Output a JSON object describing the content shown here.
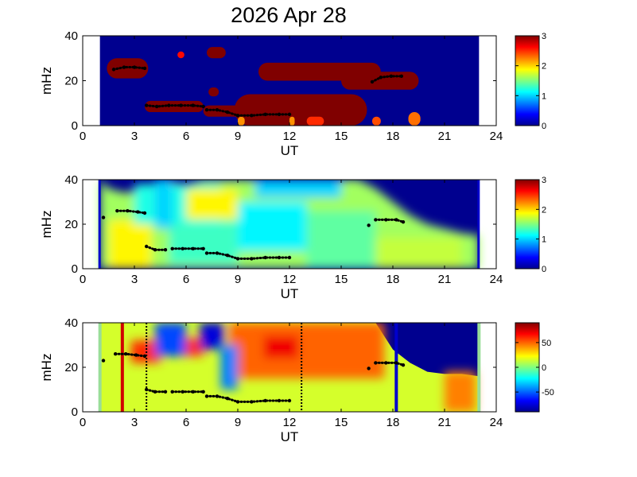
{
  "title": "2026 Apr 28",
  "colors": {
    "background": "#00008f",
    "axis": "#000000",
    "figure": "#ffffff"
  },
  "chart_data": [
    {
      "type": "heatmap",
      "xlabel": "UT",
      "ylabel": "mHz",
      "xlim": [
        0,
        24
      ],
      "ylim": [
        0,
        40
      ],
      "xticks": [
        "0",
        "3",
        "6",
        "9",
        "12",
        "15",
        "18",
        "21",
        "24"
      ],
      "yticks": [
        "0",
        "20",
        "40"
      ],
      "data_range_x": [
        1,
        23
      ],
      "colorbar": {
        "min": 0,
        "max": 3,
        "ticks": [
          "0",
          "1",
          "2",
          "3"
        ]
      },
      "regions": [
        {
          "t0": 1.4,
          "t1": 3.8,
          "f0": 21,
          "f1": 30,
          "level": 3
        },
        {
          "t0": 3.6,
          "t1": 7.0,
          "f0": 6,
          "f1": 11,
          "level": 3
        },
        {
          "t0": 5.5,
          "t1": 5.9,
          "f0": 30,
          "f1": 33,
          "level": 2.6
        },
        {
          "t0": 7.2,
          "t1": 8.3,
          "f0": 30,
          "f1": 35,
          "level": 3
        },
        {
          "t0": 7.3,
          "t1": 7.9,
          "f0": 13,
          "f1": 17,
          "level": 3
        },
        {
          "t0": 7.0,
          "t1": 9.2,
          "f0": 4,
          "f1": 9,
          "level": 3
        },
        {
          "t0": 8.8,
          "t1": 16.5,
          "f0": 0,
          "f1": 14,
          "level": 3
        },
        {
          "t0": 10.2,
          "t1": 17.3,
          "f0": 20,
          "f1": 28,
          "level": 3
        },
        {
          "t0": 15.0,
          "t1": 19.5,
          "f0": 16,
          "f1": 24,
          "level": 3
        },
        {
          "t0": 9.0,
          "t1": 9.4,
          "f0": 0,
          "f1": 4,
          "level": 2.2
        },
        {
          "t0": 12.0,
          "t1": 12.3,
          "f0": 0,
          "f1": 4,
          "level": 2.2
        },
        {
          "t0": 13.0,
          "t1": 14.0,
          "f0": 0,
          "f1": 4,
          "level": 2.5
        },
        {
          "t0": 16.8,
          "t1": 17.3,
          "f0": 0,
          "f1": 4,
          "level": 2.4
        },
        {
          "t0": 18.9,
          "t1": 19.6,
          "f0": 0,
          "f1": 6,
          "level": 2.3
        }
      ],
      "tracks": [
        {
          "t": [
            1.8,
            2.4,
            3.0,
            3.6
          ],
          "f": [
            25,
            26,
            26,
            25.5
          ]
        },
        {
          "t": [
            3.7,
            4.3,
            5.0,
            5.7,
            6.4,
            7.0
          ],
          "f": [
            9,
            8.5,
            9,
            9,
            9,
            8.5
          ]
        },
        {
          "t": [
            7.2,
            7.8,
            8.4,
            9.0,
            9.8,
            10.6,
            11.4,
            12.0
          ],
          "f": [
            7,
            7,
            6,
            4.5,
            4.5,
            5,
            5,
            5
          ]
        },
        {
          "t": [
            16.8,
            17.3,
            17.9,
            18.5
          ],
          "f": [
            19.5,
            21.5,
            22,
            22
          ]
        }
      ]
    },
    {
      "type": "heatmap",
      "xlabel": "UT",
      "ylabel": "mHz",
      "xlim": [
        0,
        24
      ],
      "ylim": [
        0,
        40
      ],
      "xticks": [
        "0",
        "3",
        "6",
        "9",
        "12",
        "15",
        "18",
        "21",
        "24"
      ],
      "yticks": [
        "0",
        "20",
        "40"
      ],
      "data_range_x": [
        1,
        23
      ],
      "colorbar": {
        "min": 0,
        "max": 3,
        "ticks": [
          "0",
          "1",
          "2",
          "3"
        ]
      },
      "envelope": {
        "t": [
          1,
          1.5,
          2.5,
          3.5,
          5,
          6,
          7,
          8,
          10,
          12,
          14,
          16,
          17,
          18,
          19,
          20,
          21,
          22,
          23
        ],
        "f": [
          40,
          36,
          34,
          36,
          39,
          38,
          40,
          40,
          40,
          40,
          40,
          40,
          36,
          30,
          24,
          20,
          18,
          16,
          15
        ]
      },
      "low_strip": {
        "t0": 4.2,
        "t1": 5.2,
        "f0": 18,
        "f1": 40,
        "level": 1.0
      },
      "tracks": [
        {
          "t": [
            1.2
          ],
          "f": [
            23
          ]
        },
        {
          "t": [
            2.0,
            2.6,
            3.2,
            3.6
          ],
          "f": [
            26,
            26,
            25.5,
            25
          ]
        },
        {
          "t": [
            3.7,
            4.2,
            4.8
          ],
          "f": [
            10,
            8.5,
            8.5
          ]
        },
        {
          "t": [
            5.2,
            5.8,
            6.4,
            7.0
          ],
          "f": [
            9,
            9,
            9,
            9
          ]
        },
        {
          "t": [
            7.2,
            7.8,
            8.4,
            9.0,
            9.8,
            10.6,
            11.4,
            12.0
          ],
          "f": [
            7,
            7,
            6,
            4.5,
            4.5,
            5,
            5,
            5
          ]
        },
        {
          "t": [
            16.6
          ],
          "f": [
            19.5
          ]
        },
        {
          "t": [
            17.0,
            17.6,
            18.2,
            18.6
          ],
          "f": [
            22,
            22,
            22,
            21
          ]
        }
      ]
    },
    {
      "type": "heatmap",
      "xlabel": "UT",
      "ylabel": "mHz",
      "xlim": [
        0,
        24
      ],
      "ylim": [
        0,
        40
      ],
      "xticks": [
        "0",
        "3",
        "6",
        "9",
        "12",
        "15",
        "18",
        "21",
        "24"
      ],
      "yticks": [
        "0",
        "20",
        "40"
      ],
      "data_range_x": [
        1,
        23
      ],
      "colorbar": {
        "min": -90,
        "max": 90,
        "ticks": [
          "50",
          "0",
          "-50"
        ],
        "tick_values": [
          50,
          0,
          -50
        ]
      },
      "envelope": {
        "t": [
          1,
          5,
          17,
          17.5,
          18,
          19,
          20,
          21,
          22,
          23
        ],
        "f": [
          40,
          40,
          40,
          34,
          28,
          22,
          18,
          17,
          17,
          16
        ]
      },
      "warm_regions": [
        {
          "t0": 8.5,
          "t1": 17.5,
          "f0": 15,
          "f1": 40,
          "level": 50
        },
        {
          "t0": 10.5,
          "t1": 12.5,
          "f0": 24,
          "f1": 34,
          "level": 70
        },
        {
          "t0": 2.8,
          "t1": 4.5,
          "f0": 22,
          "f1": 32,
          "level": 60
        },
        {
          "t0": 5.8,
          "t1": 7.0,
          "f0": 25,
          "f1": 33,
          "level": 60
        },
        {
          "t0": 21.0,
          "t1": 22.8,
          "f0": 0,
          "f1": 18,
          "level": 45
        }
      ],
      "cool_regions": [
        {
          "t0": 4.2,
          "t1": 6.0,
          "f0": 25,
          "f1": 40,
          "level": -55
        },
        {
          "t0": 6.8,
          "t1": 8.2,
          "f0": 28,
          "f1": 40,
          "level": -75
        },
        {
          "t0": 8.0,
          "t1": 9.0,
          "f0": 10,
          "f1": 30,
          "level": -45
        }
      ],
      "vlines": [
        {
          "t": 2.3,
          "color": "#d00000",
          "style": "solid"
        },
        {
          "t": 3.7,
          "color": "#000000",
          "style": "dotted"
        },
        {
          "t": 12.7,
          "color": "#000000",
          "style": "dotted"
        },
        {
          "t": 18.2,
          "color": "#0000cc",
          "style": "solid"
        }
      ],
      "tracks": [
        {
          "t": [
            1.2
          ],
          "f": [
            23
          ]
        },
        {
          "t": [
            1.9,
            2.5,
            3.1,
            3.6
          ],
          "f": [
            26,
            26,
            25.5,
            25
          ]
        },
        {
          "t": [
            3.7,
            4.2,
            4.8
          ],
          "f": [
            10,
            9,
            9
          ]
        },
        {
          "t": [
            5.2,
            5.8,
            6.4,
            7.0
          ],
          "f": [
            9,
            9,
            9,
            9
          ]
        },
        {
          "t": [
            7.2,
            7.8,
            8.4,
            9.0,
            9.8,
            10.6,
            11.4,
            12.0
          ],
          "f": [
            7,
            7,
            6,
            4.5,
            4.5,
            5,
            5,
            5
          ]
        },
        {
          "t": [
            16.6
          ],
          "f": [
            19.5
          ]
        },
        {
          "t": [
            17.0,
            17.6,
            18.2,
            18.6
          ],
          "f": [
            22,
            22,
            22,
            21
          ]
        }
      ]
    }
  ]
}
